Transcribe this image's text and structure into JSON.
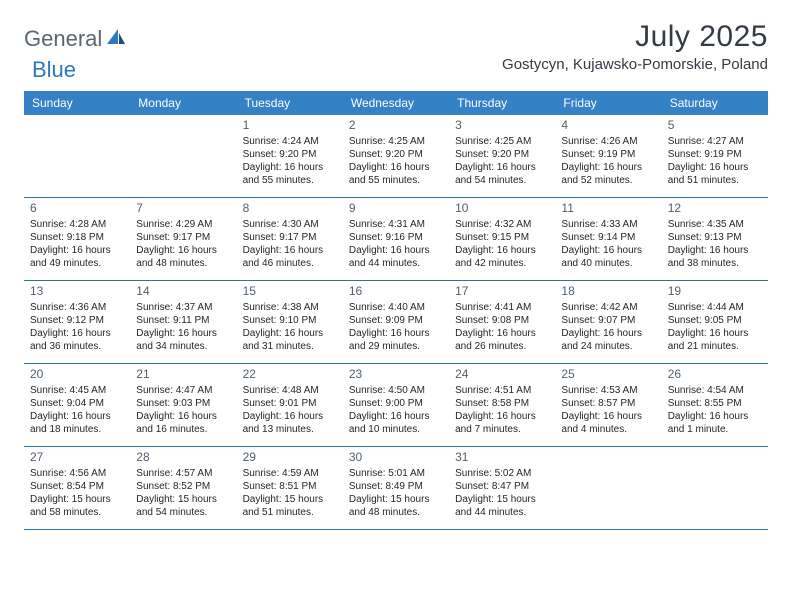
{
  "logo": {
    "general": "General",
    "blue": "Blue"
  },
  "title": "July 2025",
  "location": "Gostycyn, Kujawsko-Pomorskie, Poland",
  "colors": {
    "header_bg": "#3481c6",
    "header_text": "#ffffff",
    "row_border": "#2f6fa8",
    "day_number": "#51606e",
    "cell_text": "#262626",
    "title_text": "#333b44",
    "logo_gray": "#5a6670",
    "logo_blue": "#2f78bf"
  },
  "weekdays": [
    "Sunday",
    "Monday",
    "Tuesday",
    "Wednesday",
    "Thursday",
    "Friday",
    "Saturday"
  ],
  "weeks": [
    [
      {
        "day": "",
        "sunrise": "",
        "sunset": "",
        "daylight": ""
      },
      {
        "day": "",
        "sunrise": "",
        "sunset": "",
        "daylight": ""
      },
      {
        "day": "1",
        "sunrise": "Sunrise: 4:24 AM",
        "sunset": "Sunset: 9:20 PM",
        "daylight": "Daylight: 16 hours and 55 minutes."
      },
      {
        "day": "2",
        "sunrise": "Sunrise: 4:25 AM",
        "sunset": "Sunset: 9:20 PM",
        "daylight": "Daylight: 16 hours and 55 minutes."
      },
      {
        "day": "3",
        "sunrise": "Sunrise: 4:25 AM",
        "sunset": "Sunset: 9:20 PM",
        "daylight": "Daylight: 16 hours and 54 minutes."
      },
      {
        "day": "4",
        "sunrise": "Sunrise: 4:26 AM",
        "sunset": "Sunset: 9:19 PM",
        "daylight": "Daylight: 16 hours and 52 minutes."
      },
      {
        "day": "5",
        "sunrise": "Sunrise: 4:27 AM",
        "sunset": "Sunset: 9:19 PM",
        "daylight": "Daylight: 16 hours and 51 minutes."
      }
    ],
    [
      {
        "day": "6",
        "sunrise": "Sunrise: 4:28 AM",
        "sunset": "Sunset: 9:18 PM",
        "daylight": "Daylight: 16 hours and 49 minutes."
      },
      {
        "day": "7",
        "sunrise": "Sunrise: 4:29 AM",
        "sunset": "Sunset: 9:17 PM",
        "daylight": "Daylight: 16 hours and 48 minutes."
      },
      {
        "day": "8",
        "sunrise": "Sunrise: 4:30 AM",
        "sunset": "Sunset: 9:17 PM",
        "daylight": "Daylight: 16 hours and 46 minutes."
      },
      {
        "day": "9",
        "sunrise": "Sunrise: 4:31 AM",
        "sunset": "Sunset: 9:16 PM",
        "daylight": "Daylight: 16 hours and 44 minutes."
      },
      {
        "day": "10",
        "sunrise": "Sunrise: 4:32 AM",
        "sunset": "Sunset: 9:15 PM",
        "daylight": "Daylight: 16 hours and 42 minutes."
      },
      {
        "day": "11",
        "sunrise": "Sunrise: 4:33 AM",
        "sunset": "Sunset: 9:14 PM",
        "daylight": "Daylight: 16 hours and 40 minutes."
      },
      {
        "day": "12",
        "sunrise": "Sunrise: 4:35 AM",
        "sunset": "Sunset: 9:13 PM",
        "daylight": "Daylight: 16 hours and 38 minutes."
      }
    ],
    [
      {
        "day": "13",
        "sunrise": "Sunrise: 4:36 AM",
        "sunset": "Sunset: 9:12 PM",
        "daylight": "Daylight: 16 hours and 36 minutes."
      },
      {
        "day": "14",
        "sunrise": "Sunrise: 4:37 AM",
        "sunset": "Sunset: 9:11 PM",
        "daylight": "Daylight: 16 hours and 34 minutes."
      },
      {
        "day": "15",
        "sunrise": "Sunrise: 4:38 AM",
        "sunset": "Sunset: 9:10 PM",
        "daylight": "Daylight: 16 hours and 31 minutes."
      },
      {
        "day": "16",
        "sunrise": "Sunrise: 4:40 AM",
        "sunset": "Sunset: 9:09 PM",
        "daylight": "Daylight: 16 hours and 29 minutes."
      },
      {
        "day": "17",
        "sunrise": "Sunrise: 4:41 AM",
        "sunset": "Sunset: 9:08 PM",
        "daylight": "Daylight: 16 hours and 26 minutes."
      },
      {
        "day": "18",
        "sunrise": "Sunrise: 4:42 AM",
        "sunset": "Sunset: 9:07 PM",
        "daylight": "Daylight: 16 hours and 24 minutes."
      },
      {
        "day": "19",
        "sunrise": "Sunrise: 4:44 AM",
        "sunset": "Sunset: 9:05 PM",
        "daylight": "Daylight: 16 hours and 21 minutes."
      }
    ],
    [
      {
        "day": "20",
        "sunrise": "Sunrise: 4:45 AM",
        "sunset": "Sunset: 9:04 PM",
        "daylight": "Daylight: 16 hours and 18 minutes."
      },
      {
        "day": "21",
        "sunrise": "Sunrise: 4:47 AM",
        "sunset": "Sunset: 9:03 PM",
        "daylight": "Daylight: 16 hours and 16 minutes."
      },
      {
        "day": "22",
        "sunrise": "Sunrise: 4:48 AM",
        "sunset": "Sunset: 9:01 PM",
        "daylight": "Daylight: 16 hours and 13 minutes."
      },
      {
        "day": "23",
        "sunrise": "Sunrise: 4:50 AM",
        "sunset": "Sunset: 9:00 PM",
        "daylight": "Daylight: 16 hours and 10 minutes."
      },
      {
        "day": "24",
        "sunrise": "Sunrise: 4:51 AM",
        "sunset": "Sunset: 8:58 PM",
        "daylight": "Daylight: 16 hours and 7 minutes."
      },
      {
        "day": "25",
        "sunrise": "Sunrise: 4:53 AM",
        "sunset": "Sunset: 8:57 PM",
        "daylight": "Daylight: 16 hours and 4 minutes."
      },
      {
        "day": "26",
        "sunrise": "Sunrise: 4:54 AM",
        "sunset": "Sunset: 8:55 PM",
        "daylight": "Daylight: 16 hours and 1 minute."
      }
    ],
    [
      {
        "day": "27",
        "sunrise": "Sunrise: 4:56 AM",
        "sunset": "Sunset: 8:54 PM",
        "daylight": "Daylight: 15 hours and 58 minutes."
      },
      {
        "day": "28",
        "sunrise": "Sunrise: 4:57 AM",
        "sunset": "Sunset: 8:52 PM",
        "daylight": "Daylight: 15 hours and 54 minutes."
      },
      {
        "day": "29",
        "sunrise": "Sunrise: 4:59 AM",
        "sunset": "Sunset: 8:51 PM",
        "daylight": "Daylight: 15 hours and 51 minutes."
      },
      {
        "day": "30",
        "sunrise": "Sunrise: 5:01 AM",
        "sunset": "Sunset: 8:49 PM",
        "daylight": "Daylight: 15 hours and 48 minutes."
      },
      {
        "day": "31",
        "sunrise": "Sunrise: 5:02 AM",
        "sunset": "Sunset: 8:47 PM",
        "daylight": "Daylight: 15 hours and 44 minutes."
      },
      {
        "day": "",
        "sunrise": "",
        "sunset": "",
        "daylight": ""
      },
      {
        "day": "",
        "sunrise": "",
        "sunset": "",
        "daylight": ""
      }
    ]
  ]
}
